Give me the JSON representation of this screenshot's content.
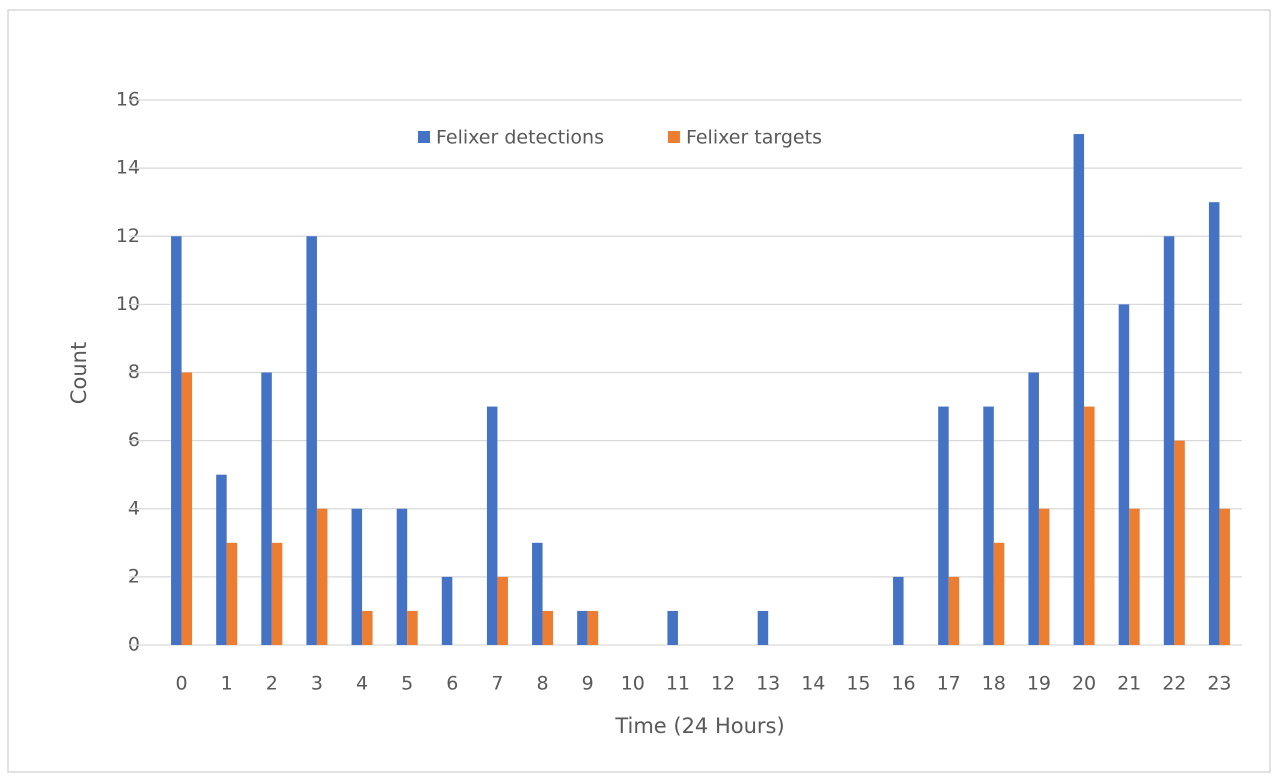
{
  "chart_data": {
    "type": "bar",
    "categories": [
      "0",
      "1",
      "2",
      "3",
      "4",
      "5",
      "6",
      "7",
      "8",
      "9",
      "10",
      "11",
      "12",
      "13",
      "14",
      "15",
      "16",
      "17",
      "18",
      "19",
      "20",
      "21",
      "22",
      "23"
    ],
    "series": [
      {
        "name": "Felixer detections",
        "color": "#4472c4",
        "values": [
          12,
          5,
          8,
          12,
          4,
          4,
          2,
          7,
          3,
          1,
          0,
          1,
          0,
          1,
          0,
          0,
          2,
          7,
          7,
          8,
          15,
          10,
          12,
          13
        ]
      },
      {
        "name": "Felixer targets",
        "color": "#ed7d31",
        "values": [
          8,
          3,
          3,
          4,
          1,
          1,
          0,
          2,
          1,
          1,
          0,
          0,
          0,
          0,
          0,
          0,
          0,
          2,
          3,
          4,
          7,
          4,
          6,
          4
        ]
      }
    ],
    "xlabel": "Time (24 Hours)",
    "ylabel": "Count",
    "ylim": [
      0,
      16
    ],
    "yticks": [
      0,
      2,
      4,
      6,
      8,
      10,
      12,
      14,
      16
    ],
    "grid": true,
    "legend": "top"
  }
}
